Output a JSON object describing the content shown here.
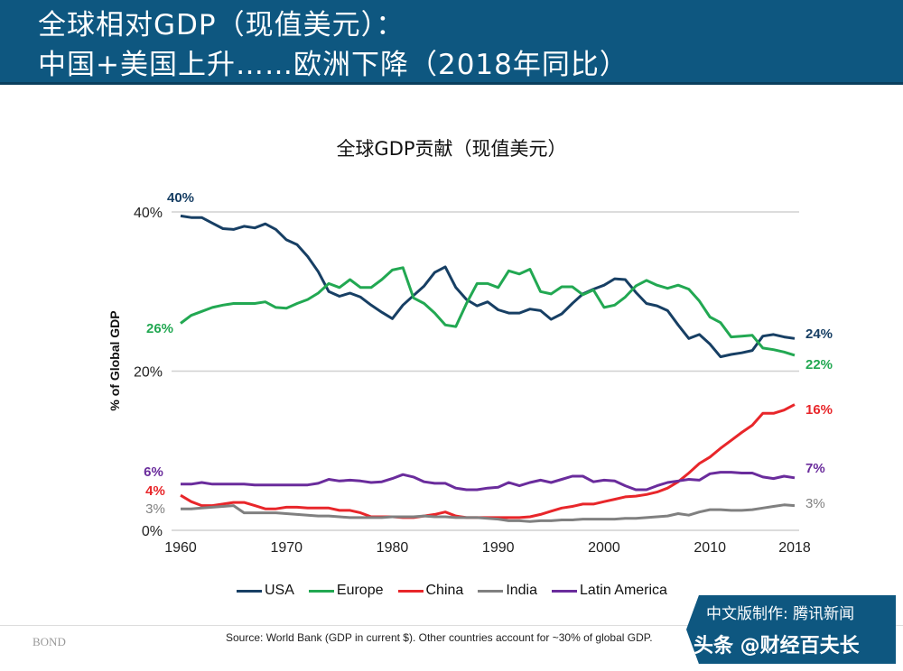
{
  "header": {
    "line1": "全球相对GDP（现值美元）：",
    "line2": "中国+美国上升……欧洲下降（2018年同比）"
  },
  "chart_data": {
    "type": "line",
    "title": "全球GDP贡献（现值美元）",
    "ylabel": "% of Global GDP",
    "xlabel": "",
    "ylim": [
      0,
      40
    ],
    "xlim": [
      1960,
      2018
    ],
    "y_ticks": [
      "0%",
      "20%",
      "40%"
    ],
    "x_ticks": [
      "1960",
      "1970",
      "1980",
      "1990",
      "2000",
      "2010",
      "2018"
    ],
    "grid": "horizontal at 0, 20, 40",
    "legend_position": "bottom",
    "x_start": 1960,
    "series": [
      {
        "name": "USA",
        "color": "#173f64",
        "start_label": "40%",
        "end_label": "24%",
        "values": [
          39.5,
          39.3,
          39.3,
          38.6,
          37.9,
          37.8,
          38.2,
          38.0,
          38.5,
          37.8,
          36.5,
          35.9,
          34.4,
          32.5,
          30.0,
          29.4,
          29.8,
          29.3,
          28.3,
          27.4,
          26.6,
          28.3,
          29.5,
          30.7,
          32.4,
          33.1,
          30.5,
          29.0,
          28.2,
          28.7,
          27.7,
          27.3,
          27.3,
          27.8,
          27.6,
          26.5,
          27.2,
          28.5,
          29.7,
          30.3,
          30.8,
          31.6,
          31.5,
          29.9,
          28.5,
          28.2,
          27.6,
          25.8,
          24.1,
          24.6,
          23.4,
          21.8,
          22.1,
          22.3,
          22.6,
          24.4,
          24.6,
          24.3,
          24.1
        ]
      },
      {
        "name": "Europe",
        "color": "#22a852",
        "start_label": "26%",
        "end_label": "22%",
        "values": [
          26.0,
          27.0,
          27.5,
          28.0,
          28.3,
          28.5,
          28.5,
          28.5,
          28.7,
          28.0,
          27.9,
          28.5,
          29.0,
          29.8,
          31.0,
          30.5,
          31.5,
          30.5,
          30.5,
          31.5,
          32.7,
          33.0,
          29.2,
          28.5,
          27.3,
          25.8,
          25.6,
          28.5,
          31.0,
          31.0,
          30.5,
          32.6,
          32.2,
          32.8,
          30.0,
          29.7,
          30.6,
          30.6,
          29.6,
          30.2,
          28.0,
          28.3,
          29.3,
          30.7,
          31.4,
          30.8,
          30.4,
          30.8,
          30.3,
          28.8,
          26.8,
          26.1,
          24.3,
          24.4,
          24.5,
          22.9,
          22.7,
          22.4,
          22.0
        ]
      },
      {
        "name": "China",
        "color": "#e8262a",
        "start_label": "4%",
        "end_label": "16%",
        "values": [
          4.4,
          3.6,
          3.1,
          3.1,
          3.3,
          3.5,
          3.5,
          3.1,
          2.7,
          2.7,
          2.9,
          2.9,
          2.8,
          2.8,
          2.8,
          2.5,
          2.5,
          2.2,
          1.7,
          1.7,
          1.7,
          1.6,
          1.6,
          1.8,
          2.0,
          2.3,
          1.8,
          1.6,
          1.6,
          1.6,
          1.6,
          1.6,
          1.6,
          1.7,
          2.0,
          2.4,
          2.8,
          3.0,
          3.3,
          3.3,
          3.6,
          3.9,
          4.2,
          4.3,
          4.5,
          4.8,
          5.3,
          6.1,
          7.2,
          8.4,
          9.2,
          10.3,
          11.3,
          12.3,
          13.2,
          14.7,
          14.7,
          15.1,
          15.8
        ]
      },
      {
        "name": "India",
        "color": "#808080",
        "start_label": "3%",
        "end_label": "3%",
        "values": [
          2.7,
          2.7,
          2.8,
          2.9,
          3.0,
          3.1,
          2.2,
          2.2,
          2.2,
          2.2,
          2.1,
          2.0,
          1.9,
          1.8,
          1.8,
          1.7,
          1.6,
          1.6,
          1.6,
          1.6,
          1.7,
          1.7,
          1.7,
          1.8,
          1.7,
          1.7,
          1.6,
          1.6,
          1.6,
          1.5,
          1.4,
          1.2,
          1.2,
          1.1,
          1.2,
          1.2,
          1.3,
          1.3,
          1.4,
          1.4,
          1.4,
          1.4,
          1.5,
          1.5,
          1.6,
          1.7,
          1.8,
          2.1,
          1.9,
          2.3,
          2.6,
          2.6,
          2.5,
          2.5,
          2.6,
          2.8,
          3.0,
          3.2,
          3.1
        ]
      },
      {
        "name": "Latin America",
        "color": "#6a2c9c",
        "start_label": "6%",
        "end_label": "7%",
        "values": [
          5.8,
          5.8,
          6.0,
          5.8,
          5.8,
          5.8,
          5.8,
          5.7,
          5.7,
          5.7,
          5.7,
          5.7,
          5.7,
          5.9,
          6.4,
          6.2,
          6.3,
          6.2,
          6.0,
          6.1,
          6.5,
          7.0,
          6.7,
          6.1,
          5.9,
          5.9,
          5.3,
          5.1,
          5.1,
          5.3,
          5.4,
          6.0,
          5.6,
          6.0,
          6.3,
          6.0,
          6.4,
          6.8,
          6.8,
          6.1,
          6.3,
          6.2,
          5.6,
          5.1,
          5.1,
          5.6,
          6.0,
          6.2,
          6.4,
          6.3,
          7.1,
          7.3,
          7.3,
          7.2,
          7.2,
          6.7,
          6.5,
          6.8,
          6.6
        ]
      }
    ]
  },
  "footer": {
    "source": "Source: World Bank (GDP in current $). Other countries account for ~30% of global GDP.",
    "bond": "BOND",
    "badge_line1": "中文版制作: 腾讯新闻",
    "badge_line2": "头条 @财经百夫长"
  }
}
